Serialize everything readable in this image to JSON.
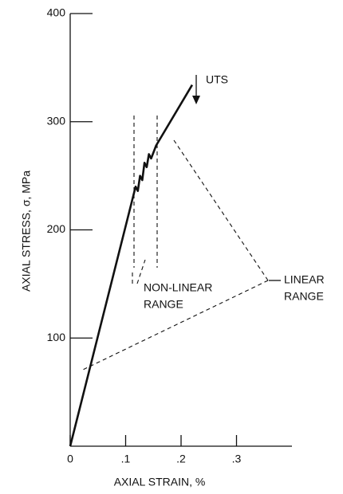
{
  "chart_data": {
    "type": "line",
    "x_label": "AXIAL STRAIN, %",
    "y_label": "AXIAL STRESS, σ, MPa",
    "annotations": [
      "UTS",
      "NON-LINEAR",
      "RANGE",
      "LINEAR",
      "RANGE"
    ],
    "x": [
      0,
      0.118,
      0.122,
      0.126,
      0.13,
      0.134,
      0.138,
      0.142,
      0.146,
      0.155,
      0.22
    ],
    "series": [
      {
        "color": "#111111",
        "values": [
          0,
          240,
          236,
          250,
          246,
          262,
          258,
          270,
          266,
          278,
          334
        ]
      }
    ],
    "xlim": [
      0,
      0.4
    ],
    "ylim": [
      0,
      400
    ],
    "xticks": [
      0,
      {
        "value": 0.1,
        "label": ".1"
      },
      {
        "value": 0.2,
        "label": ".2"
      },
      {
        "value": 0.3,
        "label": ".3"
      }
    ],
    "yticks": [
      100,
      200,
      300,
      400
    ]
  }
}
